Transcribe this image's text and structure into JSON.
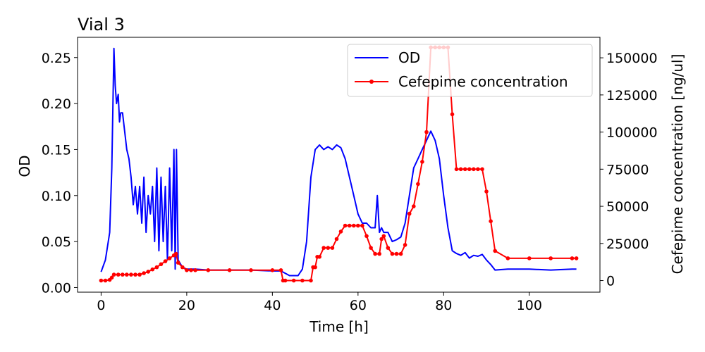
{
  "chart_data": {
    "type": "line",
    "title": "Vial 3",
    "xlabel": "Time [h]",
    "ylabel_left": "OD",
    "ylabel_right": "Cefepime concentration [ng/ul]",
    "xlim": [
      -5.5,
      116.5
    ],
    "ylim_left": [
      -0.005,
      0.272
    ],
    "ylim_right": [
      -7800,
      163800
    ],
    "x_ticks": [
      0,
      20,
      40,
      60,
      80,
      100
    ],
    "x_tick_labels": [
      "0",
      "20",
      "40",
      "60",
      "80",
      "100"
    ],
    "y_left_ticks": [
      0.0,
      0.05,
      0.1,
      0.15,
      0.2,
      0.25
    ],
    "y_left_tick_labels": [
      "0.00",
      "0.05",
      "0.10",
      "0.15",
      "0.20",
      "0.25"
    ],
    "y_right_ticks": [
      0,
      25000,
      50000,
      75000,
      100000,
      125000,
      150000
    ],
    "y_right_tick_labels": [
      "0",
      "25000",
      "50000",
      "75000",
      "100000",
      "125000",
      "150000"
    ],
    "grid": false,
    "legend_position": "top-right",
    "series": [
      {
        "name": "OD",
        "axis": "left",
        "color": "#0000ff",
        "marker": "none",
        "x": [
          0,
          1,
          2,
          2.5,
          3,
          3.3,
          3.6,
          4,
          4.3,
          4.6,
          5,
          5.5,
          6,
          6.5,
          7,
          7.5,
          8,
          8.5,
          9,
          9.5,
          10,
          10.5,
          11,
          11.5,
          12,
          12.5,
          13,
          13.5,
          14,
          14.5,
          15,
          15.5,
          16,
          16.5,
          17,
          17.3,
          17.6,
          18,
          19,
          20,
          22,
          25,
          30,
          35,
          40,
          42,
          44,
          46,
          47,
          48,
          49,
          50,
          51,
          52,
          53,
          54,
          55,
          56,
          57,
          58,
          59,
          60,
          61,
          62,
          63,
          64,
          64.5,
          65,
          65.5,
          66,
          67,
          68,
          69,
          70,
          71,
          72,
          73,
          74,
          75,
          76,
          77,
          78,
          79,
          80,
          81,
          82,
          83,
          84,
          85,
          86,
          87,
          88,
          89,
          90,
          91,
          92,
          95,
          100,
          105,
          110,
          111
        ],
        "y": [
          0.017,
          0.03,
          0.06,
          0.13,
          0.26,
          0.22,
          0.2,
          0.21,
          0.18,
          0.19,
          0.19,
          0.17,
          0.15,
          0.14,
          0.12,
          0.09,
          0.11,
          0.08,
          0.11,
          0.07,
          0.12,
          0.06,
          0.1,
          0.08,
          0.11,
          0.05,
          0.13,
          0.04,
          0.12,
          0.05,
          0.11,
          0.03,
          0.13,
          0.04,
          0.15,
          0.02,
          0.15,
          0.03,
          0.022,
          0.02,
          0.02,
          0.019,
          0.019,
          0.019,
          0.018,
          0.018,
          0.013,
          0.013,
          0.02,
          0.05,
          0.12,
          0.15,
          0.155,
          0.15,
          0.153,
          0.15,
          0.155,
          0.152,
          0.14,
          0.12,
          0.1,
          0.08,
          0.07,
          0.07,
          0.065,
          0.065,
          0.1,
          0.06,
          0.065,
          0.06,
          0.06,
          0.05,
          0.052,
          0.055,
          0.07,
          0.1,
          0.13,
          0.14,
          0.15,
          0.16,
          0.17,
          0.16,
          0.14,
          0.1,
          0.065,
          0.04,
          0.037,
          0.035,
          0.038,
          0.032,
          0.035,
          0.034,
          0.036,
          0.03,
          0.025,
          0.019,
          0.02,
          0.02,
          0.019,
          0.02,
          0.02
        ]
      },
      {
        "name": "Cefepime concentration",
        "axis": "right",
        "color": "#ff0000",
        "marker": "circle",
        "x": [
          0,
          1,
          2,
          2.5,
          3,
          4,
          5,
          6,
          7,
          8,
          9,
          10,
          11,
          12,
          13,
          14,
          15,
          16,
          17,
          17.5,
          18,
          19,
          20,
          21,
          22,
          25,
          30,
          35,
          40,
          42,
          42.5,
          43,
          45,
          47,
          49,
          49.5,
          50,
          50.5,
          51,
          52,
          53,
          54,
          55,
          56,
          57,
          58,
          59,
          60,
          61,
          62,
          63,
          64,
          65,
          65.5,
          66,
          67,
          68,
          69,
          70,
          71,
          72,
          73,
          74,
          75,
          76,
          77,
          78,
          79,
          80,
          81,
          82,
          83,
          84,
          85,
          86,
          87,
          88,
          89,
          90,
          91,
          92,
          95,
          100,
          105,
          110,
          111
        ],
        "y": [
          0,
          0,
          500,
          2000,
          4000,
          4000,
          4000,
          4000,
          4000,
          4000,
          4000,
          5000,
          6000,
          7500,
          9000,
          11000,
          13000,
          15000,
          17000,
          18000,
          12000,
          9000,
          7000,
          7000,
          7000,
          7000,
          7000,
          7000,
          7000,
          7000,
          0,
          0,
          0,
          0,
          0,
          9000,
          9000,
          16000,
          16000,
          22000,
          22000,
          22000,
          28000,
          33000,
          37000,
          37000,
          37000,
          37000,
          37000,
          30000,
          22000,
          18000,
          18000,
          28000,
          30000,
          22000,
          18000,
          18000,
          18000,
          24000,
          45000,
          50000,
          65000,
          80000,
          100000,
          157000,
          157000,
          157000,
          157000,
          157000,
          112000,
          75000,
          75000,
          75000,
          75000,
          75000,
          75000,
          75000,
          60000,
          40000,
          20000,
          15000,
          15000,
          15000,
          15000,
          15000
        ]
      }
    ]
  }
}
